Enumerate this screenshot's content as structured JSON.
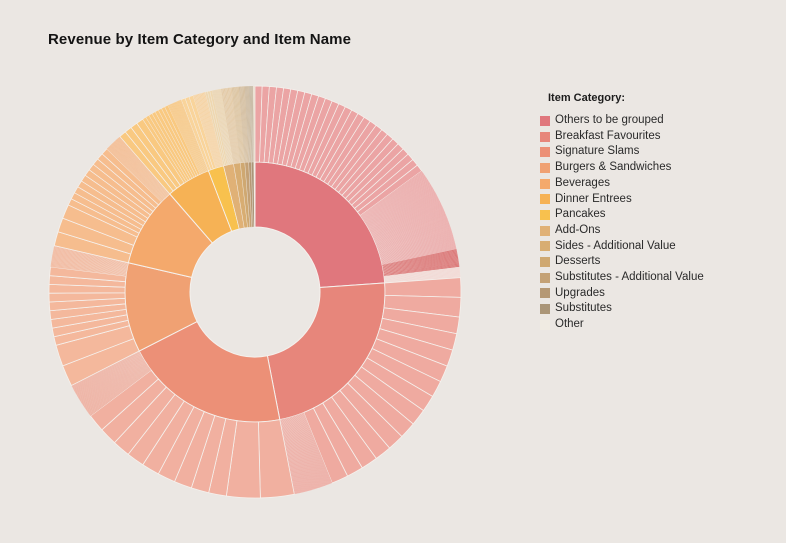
{
  "title": "Revenue by Item Category and Item Name",
  "background_color": "#EBE7E3",
  "separator_color": "#F5F1ED",
  "legend": {
    "header": "Item Category:",
    "items": [
      {
        "label": "Others to be grouped",
        "color": "#E0777D"
      },
      {
        "label": "Breakfast Favourites",
        "color": "#E7867B"
      },
      {
        "label": "Signature Slams",
        "color": "#EC9077"
      },
      {
        "label": "Burgers & Sandwiches",
        "color": "#F0A173"
      },
      {
        "label": "Beverages",
        "color": "#F4A96C"
      },
      {
        "label": "Dinner Entrees",
        "color": "#F6B255"
      },
      {
        "label": "Pancakes",
        "color": "#F8C14E"
      },
      {
        "label": "Add-Ons",
        "color": "#E0B176"
      },
      {
        "label": "Sides - Additional Value",
        "color": "#D8AD72"
      },
      {
        "label": "Desserts",
        "color": "#CFA871"
      },
      {
        "label": "Substitutes - Additional Value",
        "color": "#C4A175"
      },
      {
        "label": "Upgrades",
        "color": "#B59874"
      },
      {
        "label": "Substitutes",
        "color": "#AA9578"
      },
      {
        "label": "Other",
        "color": "#F0EBE2"
      }
    ]
  },
  "chart_data": {
    "type": "sunburst",
    "title": "Revenue by Item Category and Item Name",
    "rings": [
      "Item Category",
      "Item Name"
    ],
    "start_angle_deg": 0,
    "direction": "clockwise",
    "items_labeled": false,
    "legend_position": "right",
    "categories": [
      {
        "name": "Others to be grouped",
        "share_pct": 23.9,
        "angle_deg": 86,
        "color": "#E0777D",
        "outer_bands": [
          {
            "span_deg": 54,
            "slices": 27,
            "color": "#EBA4A4"
          },
          {
            "span_deg": 24,
            "slices": 88,
            "color": "#EBA4A4"
          },
          {
            "span_deg": 5,
            "slices": 16,
            "color": "#D96B6B"
          },
          {
            "span_deg": 3,
            "slices": 12,
            "color": "#F2D6D2"
          }
        ]
      },
      {
        "name": "Breakfast Favourites",
        "share_pct": 23.1,
        "angle_deg": 83,
        "color": "#E7867B",
        "outer_bands": [
          {
            "span_deg": 11,
            "slices": 2,
            "color": "#EFAAA0"
          },
          {
            "span_deg": 61,
            "slices": 13,
            "color": "#EFAAA0"
          },
          {
            "span_deg": 11,
            "slices": 40,
            "color": "#ECA49B"
          }
        ]
      },
      {
        "name": "Signature Slams",
        "share_pct": 20.6,
        "angle_deg": 74,
        "color": "#EC9077",
        "outer_bands": [
          {
            "span_deg": 19,
            "slices": 2,
            "color": "#F1B0A0"
          },
          {
            "span_deg": 45,
            "slices": 9,
            "color": "#F1B0A0"
          },
          {
            "span_deg": 10,
            "slices": 36,
            "color": "#EEAB9B"
          }
        ]
      },
      {
        "name": "Burgers & Sandwiches",
        "share_pct": 11.1,
        "angle_deg": 40,
        "color": "#F0A173",
        "outer_bands": [
          {
            "span_deg": 12,
            "slices": 2,
            "color": "#F4B89C"
          },
          {
            "span_deg": 22,
            "slices": 9,
            "color": "#F4B89C"
          },
          {
            "span_deg": 6,
            "slices": 24,
            "color": "#F2B295"
          }
        ]
      },
      {
        "name": "Beverages",
        "share_pct": 10.0,
        "angle_deg": 36,
        "color": "#F4A96C",
        "outer_bands": [
          {
            "span_deg": 12,
            "slices": 3,
            "color": "#F6BD8E"
          },
          {
            "span_deg": 19,
            "slices": 10,
            "color": "#F6BD8E"
          },
          {
            "span_deg": 5,
            "slices": 22,
            "color": "#F4B88A"
          }
        ]
      },
      {
        "name": "Dinner Entrees",
        "share_pct": 5.6,
        "angle_deg": 20,
        "color": "#F6B255",
        "outer_bands": [
          {
            "span_deg": 8,
            "slices": 4,
            "color": "#F9C981"
          },
          {
            "span_deg": 8,
            "slices": 8,
            "color": "#F9C981"
          },
          {
            "span_deg": 4,
            "slices": 14,
            "color": "#F8C67E"
          }
        ]
      },
      {
        "name": "Pancakes",
        "share_pct": 1.9,
        "angle_deg": 7,
        "color": "#F8C14E",
        "outer_bands": [
          {
            "span_deg": 3.5,
            "slices": 3,
            "color": "#F9D49B"
          },
          {
            "span_deg": 3.5,
            "slices": 10,
            "color": "#F6D2A0"
          }
        ]
      },
      {
        "name": "Add-Ons",
        "share_pct": 1.25,
        "angle_deg": 4.5,
        "color": "#E0B176",
        "outer_bands": [
          {
            "span_deg": 2,
            "slices": 3,
            "color": "#EED7B0"
          },
          {
            "span_deg": 2.5,
            "slices": 9,
            "color": "#EAD3AD"
          }
        ]
      },
      {
        "name": "Sides - Additional Value",
        "share_pct": 0.83,
        "angle_deg": 3,
        "color": "#D8AD72",
        "outer_bands": [
          {
            "span_deg": 3,
            "slices": 8,
            "color": "#E3C9A4"
          }
        ]
      },
      {
        "name": "Desserts",
        "share_pct": 0.56,
        "angle_deg": 2,
        "color": "#CFA871",
        "outer_bands": [
          {
            "span_deg": 2,
            "slices": 6,
            "color": "#DBC29C"
          }
        ]
      },
      {
        "name": "Substitutes - Additional Value",
        "share_pct": 0.47,
        "angle_deg": 1.7,
        "color": "#C4A175",
        "outer_bands": [
          {
            "span_deg": 1.7,
            "slices": 5,
            "color": "#D2BB9A"
          }
        ]
      },
      {
        "name": "Upgrades",
        "share_pct": 0.33,
        "angle_deg": 1.2,
        "color": "#B59874",
        "outer_bands": [
          {
            "span_deg": 1.2,
            "slices": 4,
            "color": "#C9B598"
          }
        ]
      },
      {
        "name": "Substitutes",
        "share_pct": 0.31,
        "angle_deg": 1.1,
        "color": "#AA9578",
        "outer_bands": [
          {
            "span_deg": 1.1,
            "slices": 4,
            "color": "#C1B29A"
          }
        ]
      },
      {
        "name": "Other",
        "share_pct": 0.14,
        "angle_deg": 0.5,
        "color": "#F0EBE2",
        "outer_bands": [
          {
            "span_deg": 0.5,
            "slices": 1,
            "color": "#ECE2D2"
          }
        ]
      }
    ],
    "geometry": {
      "hole_radius": 65,
      "inner_ring_outer_radius": 130,
      "outer_ring_outer_radius": 206
    }
  }
}
